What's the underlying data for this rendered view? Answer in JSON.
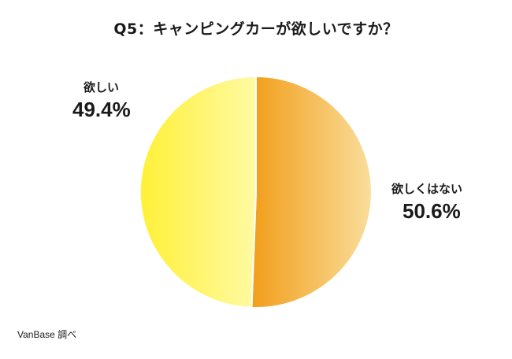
{
  "chart_data": {
    "type": "pie",
    "title": "Q5：キャンピングカーが欲しいですか？",
    "slices": [
      {
        "label": "欲しくはない",
        "value": 50.6,
        "display": "50.6%",
        "color_start": "#f29e1a",
        "color_end": "#f9de9c"
      },
      {
        "label": "欲しい",
        "value": 49.4,
        "display": "49.4%",
        "color_start": "#fff037",
        "color_end": "#fffaa3"
      }
    ],
    "start_angle_deg": 0,
    "direction": "clockwise"
  },
  "source": "VanBase 調べ"
}
